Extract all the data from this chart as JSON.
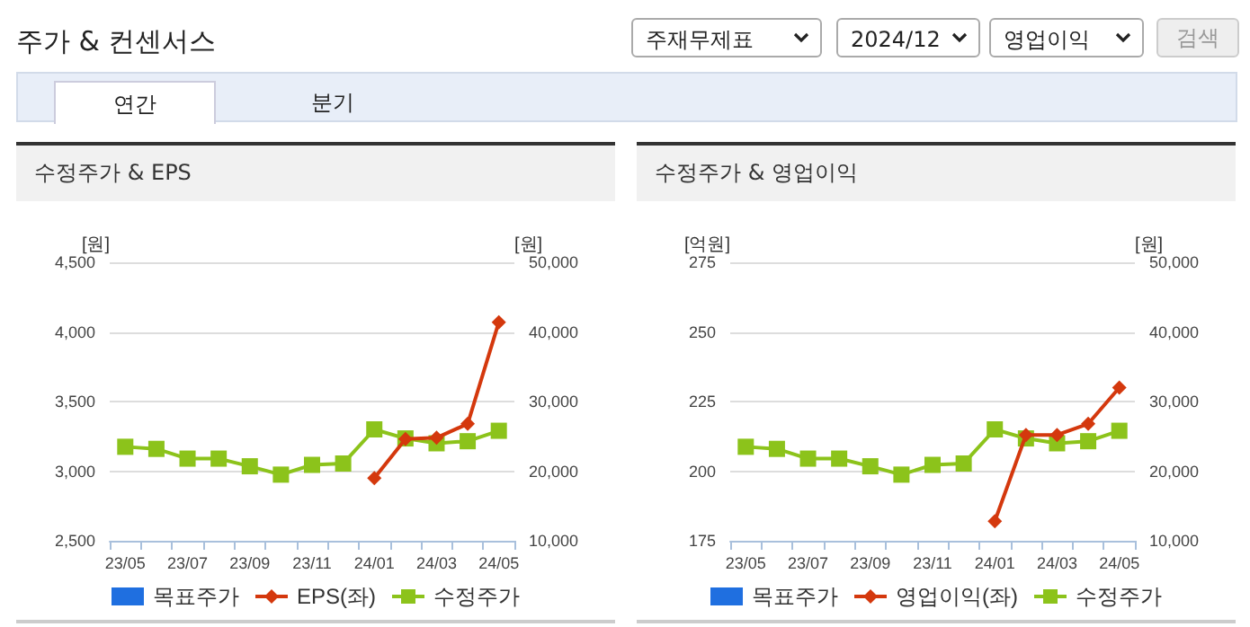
{
  "chart_data": [
    {
      "type": "line",
      "title": "수정주가 & EPS",
      "ylabel": "[원]",
      "y2label": "[원]",
      "annotations": [
        "주가 & 컨센서스",
        "주재무제표",
        "2024/12",
        "영업이익",
        "검색",
        "연간",
        "분기"
      ],
      "categories": [
        "23/05",
        null,
        "23/07",
        null,
        "23/09",
        null,
        "23/11",
        null,
        "24/01",
        null,
        "24/03",
        null,
        "24/05"
      ],
      "series": [
        {
          "name": "목표주가",
          "color": "#1f6fe0",
          "marker": "square",
          "axis": "y2",
          "values": [
            null,
            null,
            null,
            null,
            null,
            null,
            null,
            null,
            null,
            null,
            null,
            null,
            null
          ]
        },
        {
          "name": "EPS(좌)",
          "color": "#d4380d",
          "marker": "diamond",
          "values": [
            null,
            null,
            null,
            null,
            null,
            null,
            null,
            null,
            2950,
            3230,
            3240,
            3340,
            4070
          ]
        },
        {
          "name": "수정주가",
          "color": "#8cc31b",
          "marker": "square",
          "axis": "y2",
          "values": [
            23500,
            23200,
            21800,
            21800,
            20700,
            19500,
            20900,
            21100,
            26000,
            24700,
            24000,
            24300,
            25800
          ]
        }
      ],
      "ylim": [
        2500,
        4500
      ],
      "yticks": [
        {
          "value": 2500,
          "label": "2,500"
        },
        {
          "value": 3000,
          "label": "3,000"
        },
        {
          "value": 3500,
          "label": "3,500"
        },
        {
          "value": 4000,
          "label": "4,000"
        },
        {
          "value": 4500,
          "label": "4,500"
        }
      ],
      "y2lim": [
        10000,
        50000
      ],
      "y2ticks": [
        {
          "value": 10000,
          "label": "10,000"
        },
        {
          "value": 20000,
          "label": "20,000"
        },
        {
          "value": 30000,
          "label": "30,000"
        },
        {
          "value": 40000,
          "label": "40,000"
        },
        {
          "value": 50000,
          "label": "50,000"
        }
      ],
      "grid": "y",
      "legend": "bottom"
    },
    {
      "type": "line",
      "title": "수정주가 & 영업이익",
      "ylabel": "[억원]",
      "y2label": "[원]",
      "categories": [
        "23/05",
        null,
        "23/07",
        null,
        "23/09",
        null,
        "23/11",
        null,
        "24/01",
        null,
        "24/03",
        null,
        "24/05"
      ],
      "series": [
        {
          "name": "목표주가",
          "color": "#1f6fe0",
          "marker": "square",
          "axis": "y2",
          "values": [
            null,
            null,
            null,
            null,
            null,
            null,
            null,
            null,
            null,
            null,
            null,
            null,
            null
          ]
        },
        {
          "name": "영업이익(좌)",
          "color": "#d4380d",
          "marker": "diamond",
          "values": [
            null,
            null,
            null,
            null,
            null,
            null,
            null,
            null,
            182,
            213,
            213,
            217,
            230
          ]
        },
        {
          "name": "수정주가",
          "color": "#8cc31b",
          "marker": "square",
          "axis": "y2",
          "values": [
            23500,
            23200,
            21800,
            21800,
            20700,
            19500,
            20900,
            21100,
            26000,
            24700,
            24000,
            24300,
            25800
          ]
        }
      ],
      "ylim": [
        175,
        275
      ],
      "yticks": [
        175,
        200,
        225,
        250,
        275
      ],
      "y2lim": [
        10000,
        50000
      ],
      "y2ticks": [
        {
          "value": 10000,
          "label": "10,000"
        },
        {
          "value": 20000,
          "label": "20,000"
        },
        {
          "value": 30000,
          "label": "30,000"
        },
        {
          "value": 40000,
          "label": "40,000"
        },
        {
          "value": 50000,
          "label": "50,000"
        }
      ],
      "grid": "y",
      "legend": "bottom"
    }
  ]
}
